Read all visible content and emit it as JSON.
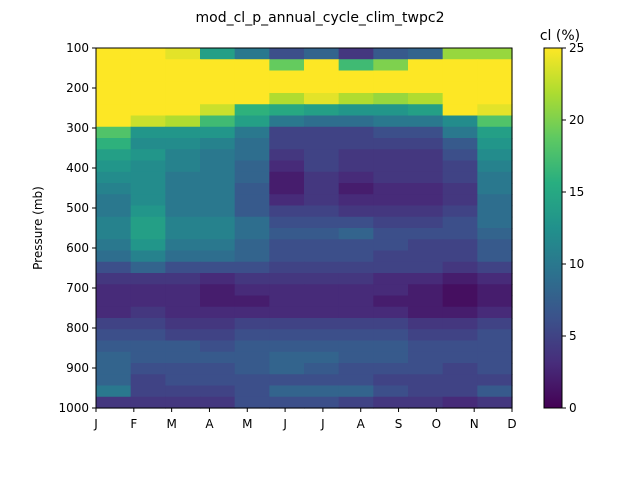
{
  "chart_data": {
    "type": "heatmap",
    "title": "mod_cl_p_annual_cycle_clim_twpc2",
    "xlabel": "",
    "ylabel": "Pressure (mb)",
    "x_ticks": [
      "J",
      "F",
      "M",
      "A",
      "M",
      "J",
      "J",
      "A",
      "S",
      "O",
      "N",
      "D"
    ],
    "y_ticks": [
      "100",
      "200",
      "300",
      "400",
      "500",
      "600",
      "700",
      "800",
      "900",
      "1000"
    ],
    "colorbar": {
      "label": "cl (%)",
      "ticks": [
        "0",
        "5",
        "10",
        "15",
        "20",
        "25"
      ],
      "vmin": 0,
      "vmax": 25,
      "colormap": "viridis"
    },
    "ylim": [
      1000,
      100
    ],
    "rows_top_to_bottom": [
      [
        25,
        25,
        24,
        14,
        10,
        6,
        8,
        4,
        7,
        8,
        21,
        21
      ],
      [
        25,
        25,
        25,
        25,
        25,
        19,
        25,
        17,
        20,
        25,
        25,
        25
      ],
      [
        25,
        25,
        25,
        25,
        25,
        25,
        25,
        25,
        25,
        25,
        25,
        25
      ],
      [
        25,
        25,
        25,
        25,
        25,
        25,
        25,
        25,
        25,
        25,
        25,
        25
      ],
      [
        25,
        25,
        25,
        25,
        25,
        22,
        24,
        22,
        21,
        22,
        25,
        25
      ],
      [
        25,
        25,
        25,
        23,
        16,
        15,
        14,
        13,
        13,
        14,
        25,
        24
      ],
      [
        25,
        23,
        22,
        17,
        14,
        10,
        9,
        9,
        10,
        10,
        12,
        18
      ],
      [
        18,
        13,
        13,
        13,
        10,
        5,
        5,
        5,
        6,
        6,
        10,
        14
      ],
      [
        16,
        12,
        12,
        11,
        9,
        5,
        5,
        5,
        5,
        5,
        7,
        13
      ],
      [
        14,
        13,
        11,
        10,
        9,
        4,
        5,
        4,
        4,
        4,
        6,
        12
      ],
      [
        13,
        12,
        11,
        10,
        8,
        3,
        5,
        4,
        4,
        4,
        5,
        11
      ],
      [
        12,
        12,
        10,
        10,
        8,
        2,
        4,
        3,
        4,
        4,
        5,
        10
      ],
      [
        11,
        12,
        10,
        10,
        7,
        2,
        4,
        2,
        3,
        3,
        4,
        10
      ],
      [
        10,
        12,
        10,
        10,
        7,
        3,
        4,
        3,
        3,
        3,
        4,
        9
      ],
      [
        10,
        13,
        10,
        10,
        7,
        5,
        5,
        4,
        4,
        4,
        5,
        9
      ],
      [
        11,
        14,
        11,
        11,
        9,
        6,
        6,
        6,
        5,
        5,
        6,
        9
      ],
      [
        11,
        14,
        11,
        11,
        9,
        7,
        7,
        8,
        6,
        6,
        6,
        8
      ],
      [
        10,
        13,
        10,
        10,
        8,
        6,
        6,
        6,
        6,
        5,
        5,
        7
      ],
      [
        9,
        11,
        9,
        9,
        8,
        6,
        6,
        6,
        5,
        5,
        5,
        7
      ],
      [
        6,
        8,
        6,
        6,
        6,
        5,
        5,
        5,
        5,
        5,
        4,
        5
      ],
      [
        4,
        4,
        4,
        3,
        4,
        4,
        4,
        4,
        3,
        3,
        2,
        3
      ],
      [
        3,
        3,
        3,
        2,
        3,
        3,
        3,
        3,
        3,
        2,
        1,
        2
      ],
      [
        3,
        3,
        3,
        2,
        2,
        3,
        3,
        3,
        2,
        2,
        1,
        2
      ],
      [
        3,
        4,
        3,
        3,
        3,
        3,
        3,
        3,
        3,
        2,
        2,
        3
      ],
      [
        5,
        5,
        4,
        4,
        5,
        5,
        5,
        5,
        5,
        4,
        4,
        5
      ],
      [
        6,
        6,
        5,
        5,
        6,
        6,
        6,
        6,
        6,
        5,
        5,
        6
      ],
      [
        7,
        7,
        7,
        6,
        7,
        7,
        7,
        7,
        7,
        6,
        6,
        6
      ],
      [
        8,
        7,
        7,
        7,
        7,
        8,
        8,
        7,
        7,
        6,
        6,
        6
      ],
      [
        8,
        6,
        6,
        6,
        7,
        8,
        7,
        6,
        6,
        6,
        5,
        6
      ],
      [
        8,
        5,
        6,
        6,
        6,
        6,
        6,
        6,
        5,
        5,
        5,
        5
      ],
      [
        10,
        5,
        5,
        5,
        6,
        8,
        8,
        8,
        6,
        5,
        5,
        7
      ],
      [
        4,
        4,
        4,
        4,
        6,
        6,
        6,
        5,
        4,
        4,
        3,
        4
      ]
    ]
  }
}
